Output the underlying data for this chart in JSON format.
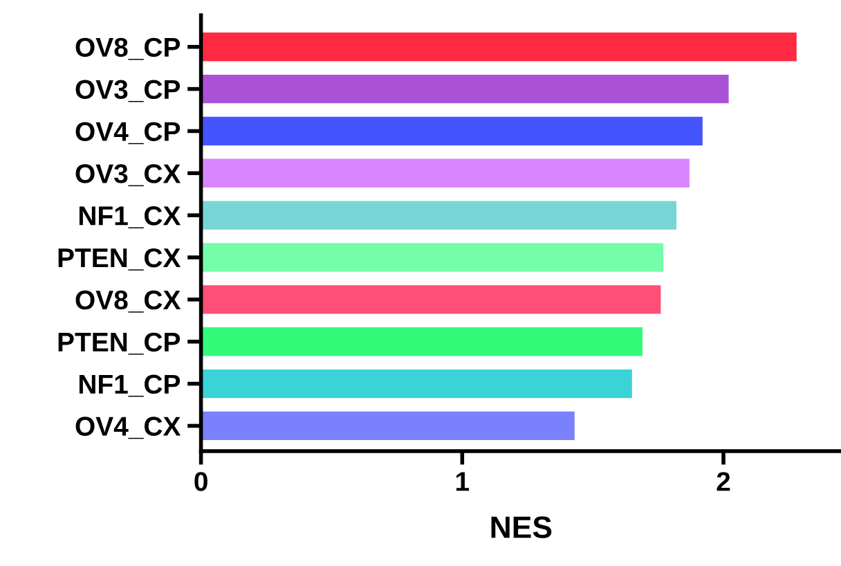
{
  "chart_data": {
    "type": "bar",
    "orientation": "horizontal",
    "xlabel": "NES",
    "categories": [
      "OV8_CP",
      "OV3_CP",
      "OV4_CP",
      "OV3_CX",
      "NF1_CX",
      "PTEN_CX",
      "OV8_CX",
      "PTEN_CP",
      "NF1_CP",
      "OV4_CX"
    ],
    "values": [
      2.28,
      2.02,
      1.92,
      1.87,
      1.82,
      1.77,
      1.76,
      1.69,
      1.65,
      1.43
    ],
    "colors": [
      "#ff2a42",
      "#a952d6",
      "#4455ff",
      "#d886ff",
      "#78d5d6",
      "#76fdaa",
      "#ff4f78",
      "#31fb79",
      "#3ad3d6",
      "#7b80fd"
    ],
    "xlim": [
      0,
      2.45
    ],
    "xticks": [
      0,
      1,
      2
    ],
    "grid": false,
    "legend": false
  }
}
